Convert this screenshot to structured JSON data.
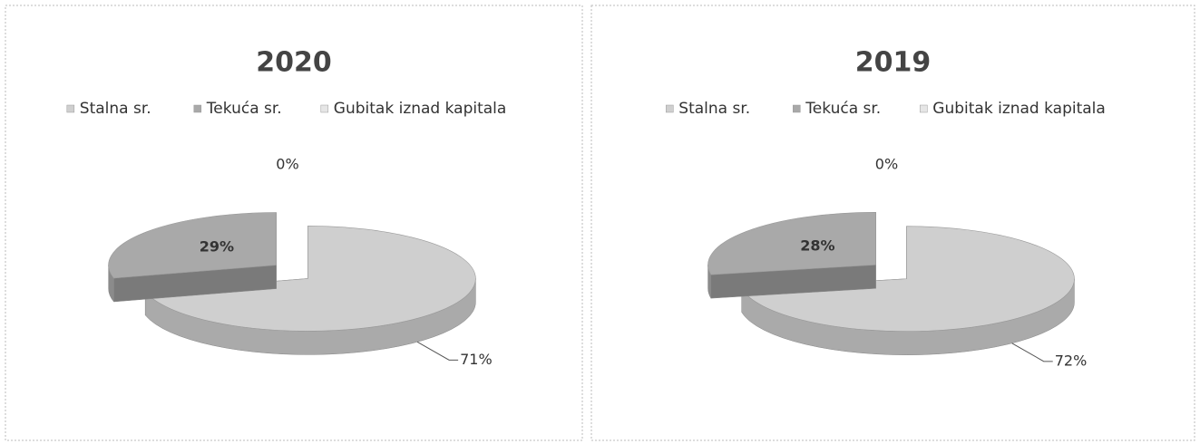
{
  "chart_data": [
    {
      "type": "pie",
      "title": "2020",
      "categories": [
        "Stalna sr.",
        "Tekuća sr.",
        "Gubitak iznad kapitala"
      ],
      "values": [
        71,
        29,
        0
      ],
      "value_labels": [
        "71%",
        "29%",
        "0%"
      ],
      "colors": [
        "#cfcfcf",
        "#a9a9a9",
        "#e6e6e6"
      ],
      "legend": "top"
    },
    {
      "type": "pie",
      "title": "2019",
      "categories": [
        "Stalna sr.",
        "Tekuća sr.",
        "Gubitak iznad kapitala"
      ],
      "values": [
        72,
        28,
        0
      ],
      "value_labels": [
        "72%",
        "28%",
        "0%"
      ],
      "colors": [
        "#cfcfcf",
        "#a9a9a9",
        "#e6e6e6"
      ],
      "legend": "top"
    }
  ]
}
